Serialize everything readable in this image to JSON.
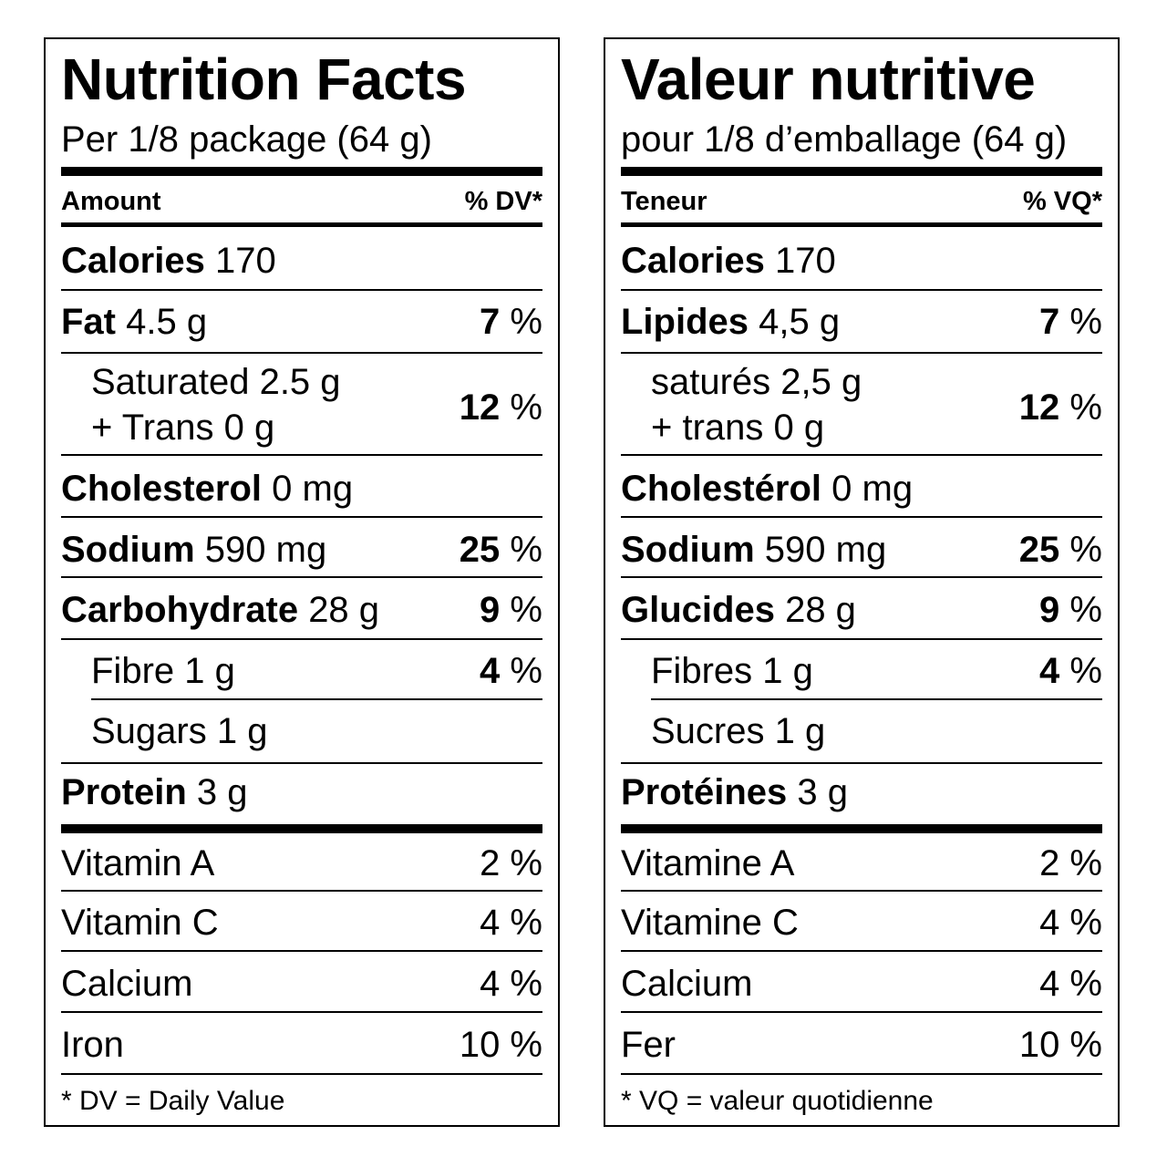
{
  "english": {
    "title": "Nutrition Facts",
    "serving": "Per 1/8 package (64 g)",
    "amount_header": "Amount",
    "dv_header": "% DV*",
    "calories": {
      "label": "Calories",
      "value": "170"
    },
    "fat": {
      "label": "Fat",
      "value": "4.5 g",
      "pct_num": "7",
      "pct_sign": "%"
    },
    "saturated": {
      "line1": "Saturated 2.5 g",
      "line2": "+ Trans 0 g",
      "pct_num": "12",
      "pct_sign": "%"
    },
    "cholesterol": {
      "label": "Cholesterol",
      "value": "0 mg"
    },
    "sodium": {
      "label": "Sodium",
      "value": "590 mg",
      "pct_num": "25",
      "pct_sign": "%"
    },
    "carbohydrate": {
      "label": "Carbohydrate",
      "value": "28 g",
      "pct_num": "9",
      "pct_sign": "%"
    },
    "fibre": {
      "label": "Fibre 1 g",
      "pct_num": "4",
      "pct_sign": "%"
    },
    "sugars": {
      "label": "Sugars 1 g"
    },
    "protein": {
      "label": "Protein",
      "value": "3 g"
    },
    "vitamin_a": {
      "label": "Vitamin A",
      "pct": "2 %"
    },
    "vitamin_c": {
      "label": "Vitamin C",
      "pct": "4 %"
    },
    "calcium": {
      "label": "Calcium",
      "pct": "4 %"
    },
    "iron": {
      "label": "Iron",
      "pct": "10 %"
    },
    "footnote": "* DV = Daily Value"
  },
  "french": {
    "title": "Valeur nutritive",
    "serving": "pour 1/8 d’emballage (64 g)",
    "amount_header": "Teneur",
    "dv_header": "% VQ*",
    "calories": {
      "label": "Calories",
      "value": "170"
    },
    "fat": {
      "label": "Lipides",
      "value": "4,5 g",
      "pct_num": "7",
      "pct_sign": "%"
    },
    "saturated": {
      "line1": "saturés 2,5 g",
      "line2": "+ trans 0 g",
      "pct_num": "12",
      "pct_sign": "%"
    },
    "cholesterol": {
      "label": "Cholestérol",
      "value": "0 mg"
    },
    "sodium": {
      "label": "Sodium",
      "value": "590 mg",
      "pct_num": "25",
      "pct_sign": "%"
    },
    "carbohydrate": {
      "label": "Glucides",
      "value": "28 g",
      "pct_num": "9",
      "pct_sign": "%"
    },
    "fibre": {
      "label": "Fibres 1 g",
      "pct_num": "4",
      "pct_sign": "%"
    },
    "sugars": {
      "label": "Sucres 1 g"
    },
    "protein": {
      "label": "Protéines",
      "value": "3 g"
    },
    "vitamin_a": {
      "label": "Vitamine A",
      "pct": "2 %"
    },
    "vitamin_c": {
      "label": "Vitamine C",
      "pct": "4 %"
    },
    "calcium": {
      "label": "Calcium",
      "pct": "4 %"
    },
    "iron": {
      "label": "Fer",
      "pct": "10 %"
    },
    "footnote": "* VQ = valeur quotidienne"
  }
}
